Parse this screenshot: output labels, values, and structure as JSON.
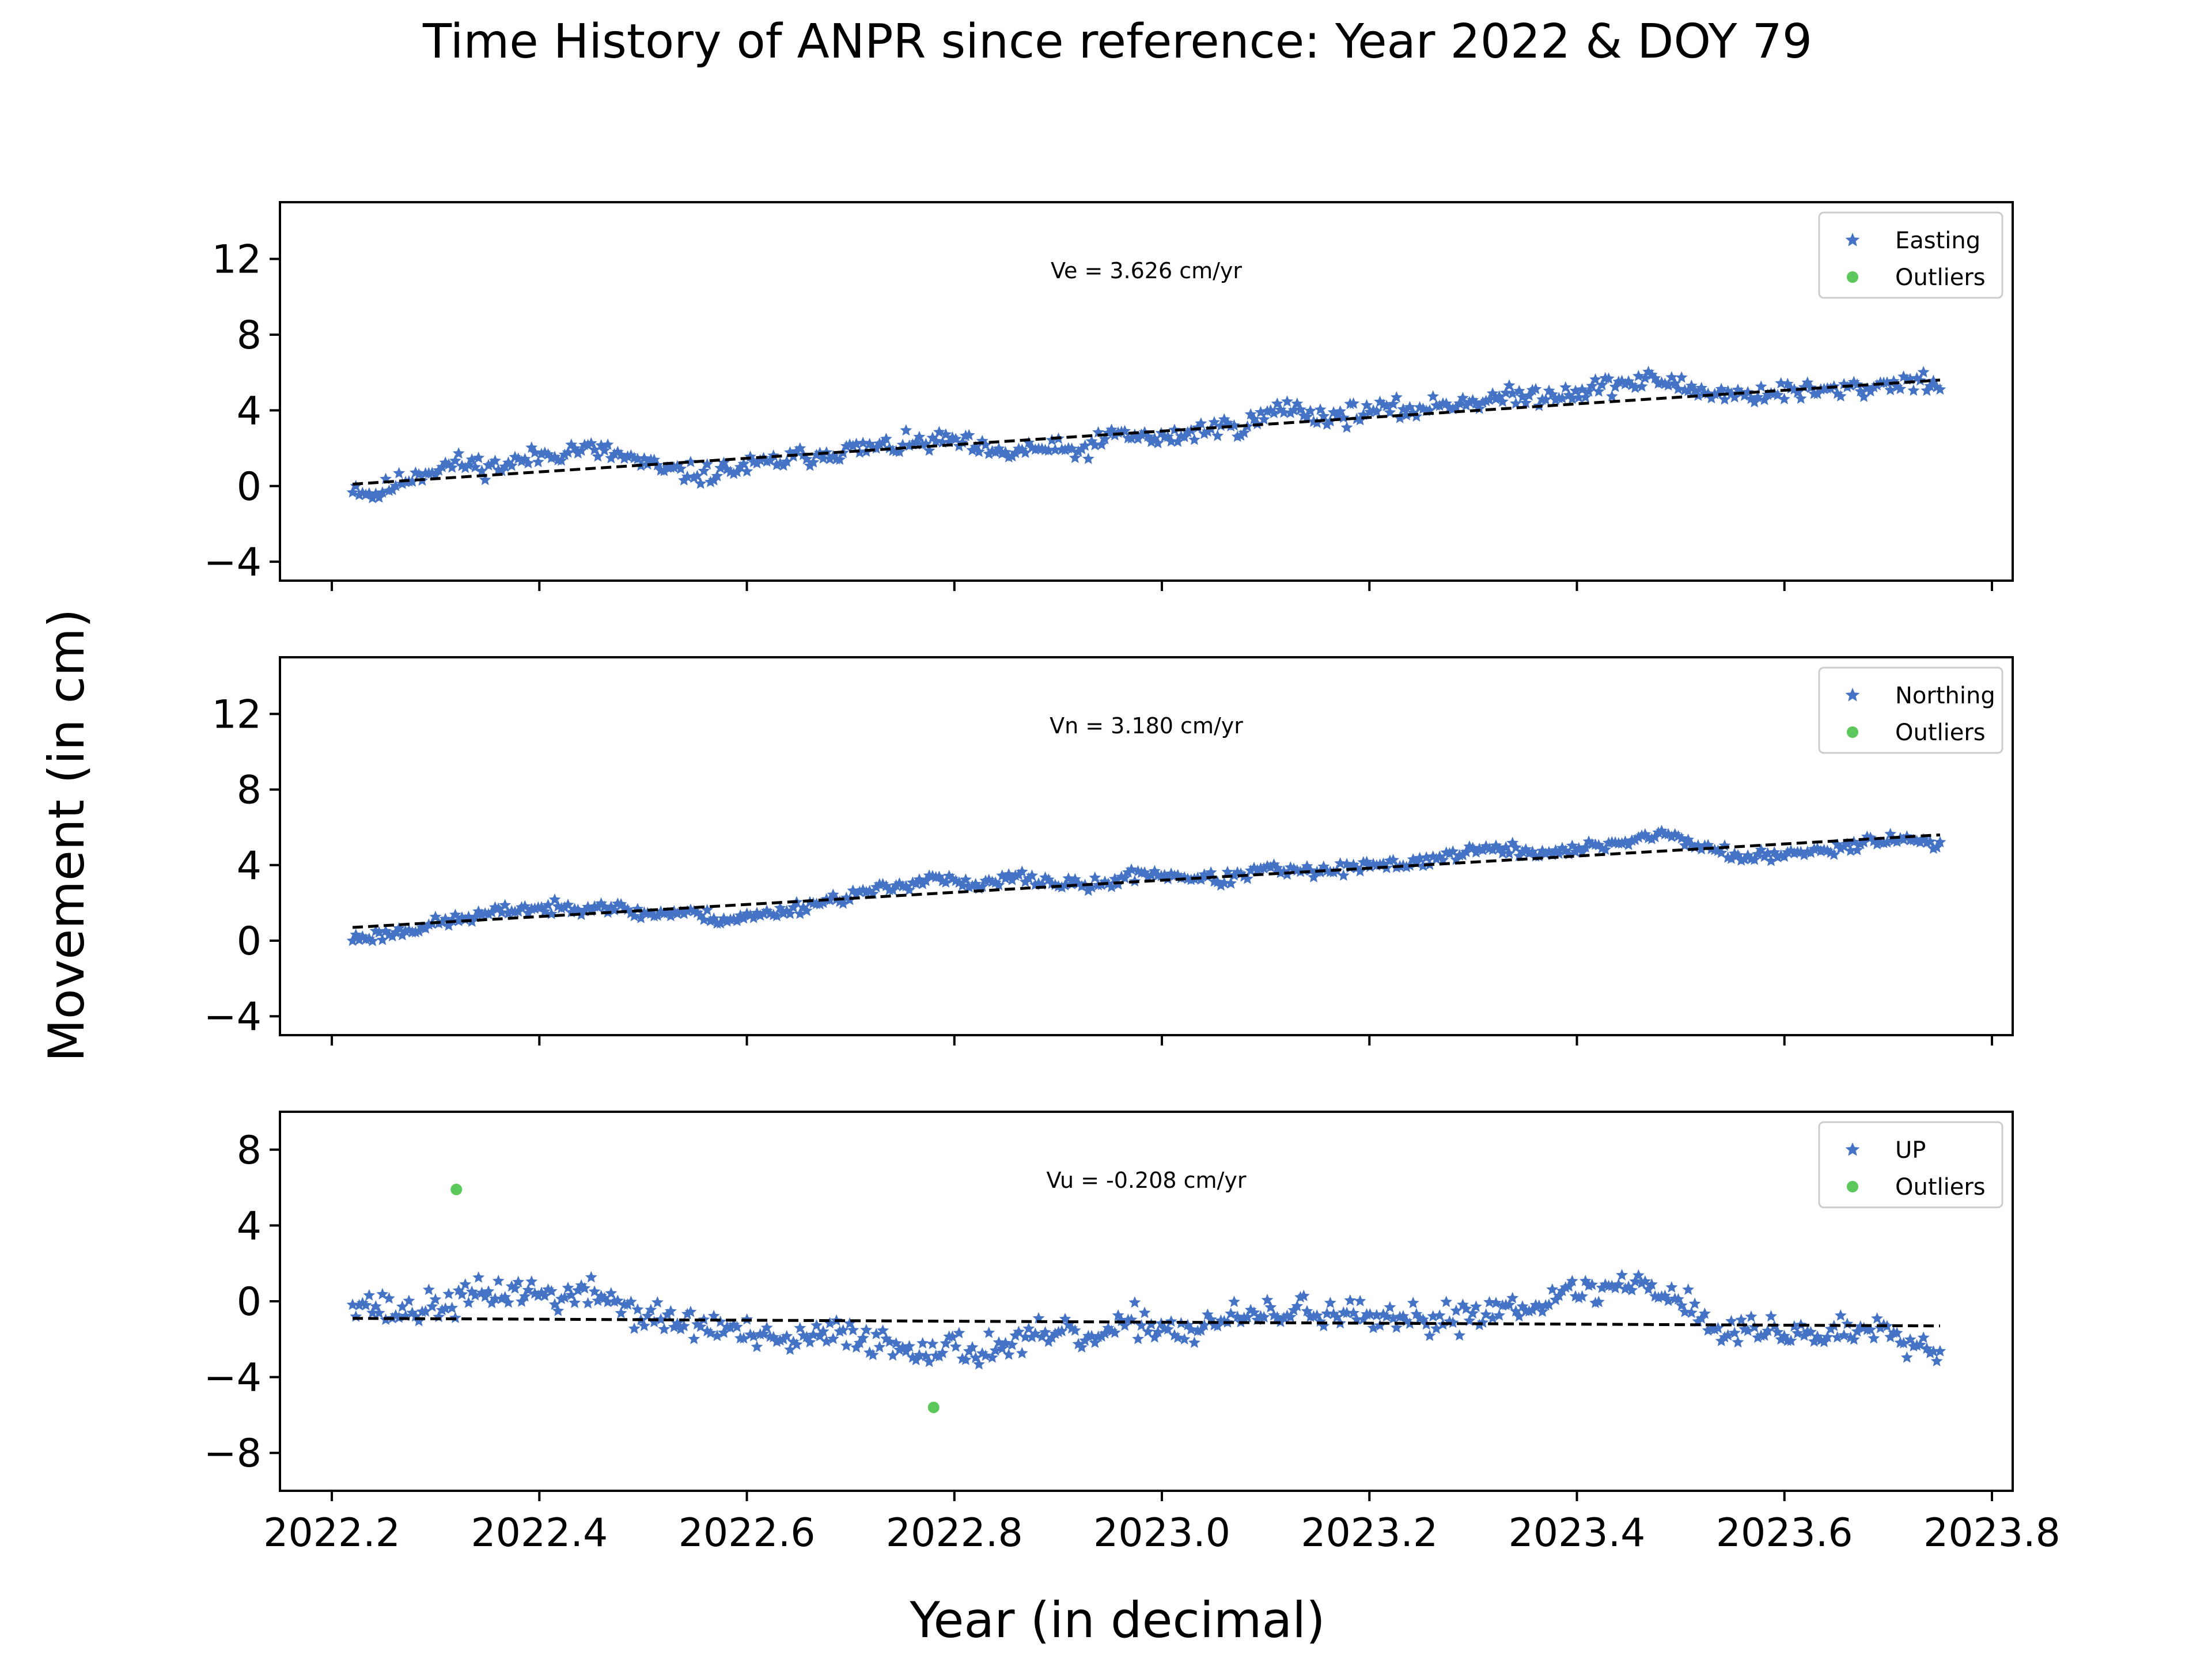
{
  "figure": {
    "title": "Time History of ANPR since reference: Year 2022 & DOY 79",
    "xlabel": "Year (in decimal)",
    "ylabel": "Movement (in cm)"
  },
  "colors": {
    "data": "#4472C4",
    "outlier": "#5CC85C",
    "trend": "#000000"
  },
  "x_ticks": [
    "2022.2",
    "2022.4",
    "2022.6",
    "2022.8",
    "2023.0",
    "2023.2",
    "2023.4",
    "2023.6",
    "2023.8"
  ],
  "chart_data": [
    {
      "type": "scatter",
      "name": "easting-panel",
      "series": [
        {
          "name": "Easting",
          "marker": "star"
        },
        {
          "name": "Outliers",
          "marker": "circle",
          "values": []
        }
      ],
      "annotation": "Ve =  3.626 cm/yr",
      "trend": {
        "x": [
          2022.22,
          2023.75
        ],
        "y": [
          0.1,
          5.6
        ]
      },
      "xlim": [
        2022.15,
        2023.82
      ],
      "ylim": [
        -5,
        15
      ],
      "yticks": [
        12,
        8,
        4,
        0,
        -4
      ],
      "ytick_labels": [
        "12",
        "8",
        "4",
        "0",
        "−4"
      ],
      "legend": "top-right",
      "grid": false,
      "anchors": [
        [
          2022.22,
          0.0
        ],
        [
          2022.24,
          -0.5
        ],
        [
          2022.28,
          0.6
        ],
        [
          2022.32,
          1.2
        ],
        [
          2022.36,
          1.0
        ],
        [
          2022.4,
          1.6
        ],
        [
          2022.44,
          2.0
        ],
        [
          2022.48,
          1.6
        ],
        [
          2022.52,
          0.8
        ],
        [
          2022.56,
          0.6
        ],
        [
          2022.6,
          1.0
        ],
        [
          2022.64,
          1.4
        ],
        [
          2022.68,
          1.8
        ],
        [
          2022.72,
          2.0
        ],
        [
          2022.76,
          2.2
        ],
        [
          2022.8,
          2.4
        ],
        [
          2022.84,
          1.6
        ],
        [
          2022.88,
          2.0
        ],
        [
          2022.92,
          1.8
        ],
        [
          2022.96,
          2.8
        ],
        [
          2023.0,
          2.4
        ],
        [
          2023.04,
          3.0
        ],
        [
          2023.08,
          3.2
        ],
        [
          2023.12,
          4.2
        ],
        [
          2023.16,
          3.6
        ],
        [
          2023.2,
          4.0
        ],
        [
          2023.24,
          4.0
        ],
        [
          2023.28,
          4.4
        ],
        [
          2023.32,
          4.6
        ],
        [
          2023.36,
          4.8
        ],
        [
          2023.4,
          5.0
        ],
        [
          2023.44,
          5.4
        ],
        [
          2023.48,
          5.6
        ],
        [
          2023.52,
          5.0
        ],
        [
          2023.56,
          4.8
        ],
        [
          2023.6,
          5.0
        ],
        [
          2023.64,
          5.0
        ],
        [
          2023.68,
          5.2
        ],
        [
          2023.72,
          5.6
        ],
        [
          2023.75,
          5.4
        ]
      ],
      "noise": 0.45,
      "n_points": 480,
      "seed": 11
    },
    {
      "type": "scatter",
      "name": "northing-panel",
      "series": [
        {
          "name": "Northing",
          "marker": "star"
        },
        {
          "name": "Outliers",
          "marker": "circle",
          "values": []
        }
      ],
      "annotation": "Vn =  3.180 cm/yr",
      "trend": {
        "x": [
          2022.22,
          2023.75
        ],
        "y": [
          0.7,
          5.6
        ]
      },
      "xlim": [
        2022.15,
        2023.82
      ],
      "ylim": [
        -5,
        15
      ],
      "yticks": [
        12,
        8,
        4,
        0,
        -4
      ],
      "ytick_labels": [
        "12",
        "8",
        "4",
        "0",
        "−4"
      ],
      "legend": "top-right",
      "grid": false,
      "anchors": [
        [
          2022.22,
          0.1
        ],
        [
          2022.26,
          0.4
        ],
        [
          2022.3,
          0.9
        ],
        [
          2022.34,
          1.3
        ],
        [
          2022.38,
          1.7
        ],
        [
          2022.42,
          1.7
        ],
        [
          2022.46,
          1.9
        ],
        [
          2022.5,
          1.4
        ],
        [
          2022.54,
          1.5
        ],
        [
          2022.58,
          1.1
        ],
        [
          2022.62,
          1.4
        ],
        [
          2022.66,
          1.9
        ],
        [
          2022.7,
          2.4
        ],
        [
          2022.74,
          2.8
        ],
        [
          2022.78,
          3.4
        ],
        [
          2022.82,
          2.8
        ],
        [
          2022.86,
          3.4
        ],
        [
          2022.9,
          3.0
        ],
        [
          2022.94,
          2.9
        ],
        [
          2022.98,
          3.6
        ],
        [
          2023.02,
          3.4
        ],
        [
          2023.06,
          3.2
        ],
        [
          2023.1,
          3.8
        ],
        [
          2023.14,
          3.6
        ],
        [
          2023.18,
          3.8
        ],
        [
          2023.22,
          4.0
        ],
        [
          2023.26,
          4.3
        ],
        [
          2023.3,
          4.8
        ],
        [
          2023.34,
          4.8
        ],
        [
          2023.38,
          4.6
        ],
        [
          2023.42,
          5.0
        ],
        [
          2023.46,
          5.4
        ],
        [
          2023.48,
          5.7
        ],
        [
          2023.52,
          5.0
        ],
        [
          2023.56,
          4.4
        ],
        [
          2023.6,
          4.5
        ],
        [
          2023.64,
          4.8
        ],
        [
          2023.68,
          5.3
        ],
        [
          2023.72,
          5.4
        ],
        [
          2023.75,
          5.1
        ]
      ],
      "noise": 0.28,
      "n_points": 480,
      "seed": 23
    },
    {
      "type": "scatter",
      "name": "up-panel",
      "series": [
        {
          "name": "UP",
          "marker": "star"
        },
        {
          "name": "Outliers",
          "marker": "circle",
          "values": [
            [
              2022.32,
              5.9
            ],
            [
              2022.78,
              -5.6
            ]
          ]
        }
      ],
      "annotation": "Vu = -0.208 cm/yr",
      "trend": {
        "x": [
          2022.22,
          2023.75
        ],
        "y": [
          -0.9,
          -1.3
        ]
      },
      "xlim": [
        2022.15,
        2023.82
      ],
      "ylim": [
        -10,
        10
      ],
      "yticks": [
        8,
        4,
        0,
        -4,
        -8
      ],
      "ytick_labels": [
        "8",
        "4",
        "0",
        "−4",
        "−8"
      ],
      "legend": "top-right",
      "grid": false,
      "anchors": [
        [
          2022.22,
          0.2
        ],
        [
          2022.26,
          -0.6
        ],
        [
          2022.3,
          -0.3
        ],
        [
          2022.34,
          0.3
        ],
        [
          2022.38,
          0.6
        ],
        [
          2022.42,
          0.2
        ],
        [
          2022.46,
          0.4
        ],
        [
          2022.5,
          -0.8
        ],
        [
          2022.54,
          -1.2
        ],
        [
          2022.58,
          -1.4
        ],
        [
          2022.62,
          -2.2
        ],
        [
          2022.66,
          -2.0
        ],
        [
          2022.7,
          -1.6
        ],
        [
          2022.74,
          -2.4
        ],
        [
          2022.78,
          -2.4
        ],
        [
          2022.82,
          -2.6
        ],
        [
          2022.86,
          -2.2
        ],
        [
          2022.9,
          -1.8
        ],
        [
          2022.94,
          -2.0
        ],
        [
          2022.98,
          -1.0
        ],
        [
          2023.02,
          -1.6
        ],
        [
          2023.06,
          -1.0
        ],
        [
          2023.1,
          -0.8
        ],
        [
          2023.14,
          -0.4
        ],
        [
          2023.18,
          -0.8
        ],
        [
          2023.22,
          -1.2
        ],
        [
          2023.26,
          -1.0
        ],
        [
          2023.3,
          -0.6
        ],
        [
          2023.34,
          -0.2
        ],
        [
          2023.38,
          0.2
        ],
        [
          2023.42,
          0.6
        ],
        [
          2023.46,
          1.0
        ],
        [
          2023.5,
          0.2
        ],
        [
          2023.54,
          -1.8
        ],
        [
          2023.58,
          -1.4
        ],
        [
          2023.62,
          -1.8
        ],
        [
          2023.66,
          -1.6
        ],
        [
          2023.7,
          -1.2
        ],
        [
          2023.74,
          -2.6
        ],
        [
          2023.75,
          -2.8
        ]
      ],
      "noise": 0.7,
      "n_points": 480,
      "seed": 37
    }
  ]
}
